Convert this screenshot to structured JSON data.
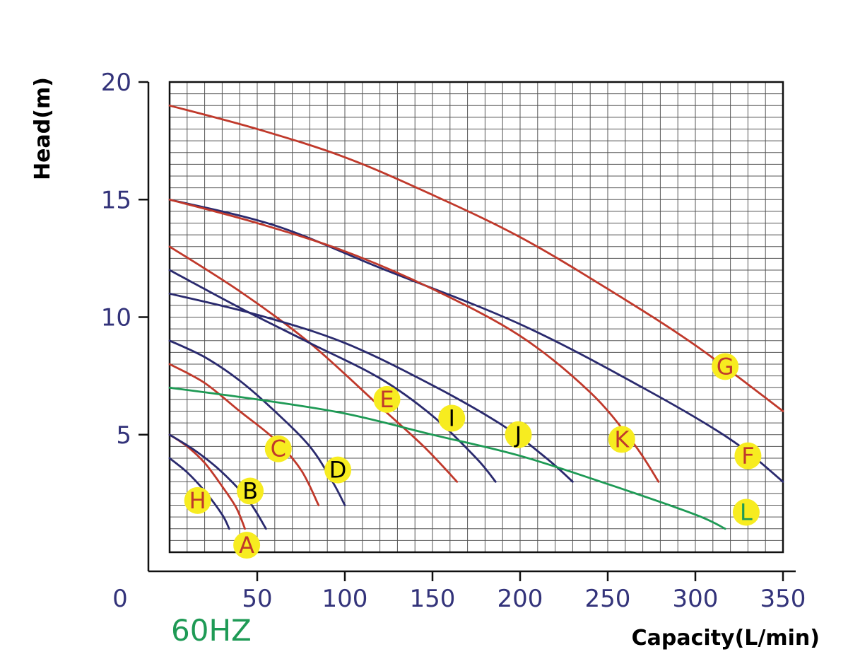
{
  "chart_data": {
    "type": "line",
    "xlabel": "Capacity(L/min)",
    "ylabel": "Head(m)",
    "frequency_label": "60HZ",
    "xlim": [
      0,
      350
    ],
    "ylim": [
      0,
      20
    ],
    "x_ticks": [
      "0",
      "50",
      "100",
      "150",
      "200",
      "250",
      "300",
      "350"
    ],
    "y_ticks": [
      "20",
      "15",
      "10",
      "5"
    ],
    "grid": true,
    "colors": {
      "red": "#c0392b",
      "navy": "#2a2a6e",
      "green": "#1e9a55",
      "marker": "#f7ec20",
      "tick": "#33337a"
    },
    "series": [
      {
        "name": "A",
        "color": "#c0392b",
        "label_color": "#c0392b",
        "label_at": [
          44,
          0.3
        ],
        "points": [
          [
            0,
            5
          ],
          [
            10,
            4.5
          ],
          [
            20,
            3.8
          ],
          [
            30,
            2.8
          ],
          [
            38,
            1.9
          ],
          [
            43,
            1.0
          ]
        ]
      },
      {
        "name": "B",
        "color": "#2a2a6e",
        "label_color": "#000000",
        "label_at": [
          46,
          2.6
        ],
        "points": [
          [
            0,
            5
          ],
          [
            15,
            4.3
          ],
          [
            30,
            3.4
          ],
          [
            45,
            2.2
          ],
          [
            55,
            1.0
          ]
        ]
      },
      {
        "name": "C",
        "color": "#c0392b",
        "label_color": "#c0392b",
        "label_at": [
          62,
          4.4
        ],
        "points": [
          [
            0,
            8
          ],
          [
            20,
            7.2
          ],
          [
            40,
            6.0
          ],
          [
            60,
            4.8
          ],
          [
            75,
            3.5
          ],
          [
            85,
            2.0
          ]
        ]
      },
      {
        "name": "D",
        "color": "#2a2a6e",
        "label_color": "#000000",
        "label_at": [
          96,
          3.5
        ],
        "points": [
          [
            0,
            9
          ],
          [
            20,
            8.3
          ],
          [
            40,
            7.3
          ],
          [
            60,
            6.0
          ],
          [
            80,
            4.5
          ],
          [
            93,
            3.0
          ],
          [
            100,
            2.0
          ]
        ]
      },
      {
        "name": "E",
        "color": "#c0392b",
        "label_color": "#c0392b",
        "label_at": [
          124,
          6.5
        ],
        "points": [
          [
            0,
            13
          ],
          [
            40,
            11.1
          ],
          [
            80,
            8.9
          ],
          [
            120,
            6.2
          ],
          [
            145,
            4.5
          ],
          [
            164,
            3.0
          ]
        ]
      },
      {
        "name": "F",
        "color": "#2a2a6e",
        "label_color": "#c0392b",
        "label_at": [
          330,
          4.1
        ],
        "points": [
          [
            0,
            15
          ],
          [
            60,
            13.9
          ],
          [
            120,
            12.1
          ],
          [
            200,
            9.7
          ],
          [
            270,
            7.0
          ],
          [
            320,
            4.8
          ],
          [
            350,
            3.0
          ]
        ]
      },
      {
        "name": "G",
        "color": "#c0392b",
        "label_color": "#c0392b",
        "label_at": [
          317,
          7.9
        ],
        "points": [
          [
            0,
            19
          ],
          [
            50,
            18
          ],
          [
            100,
            16.8
          ],
          [
            150,
            15.2
          ],
          [
            200,
            13.4
          ],
          [
            250,
            11.2
          ],
          [
            300,
            8.8
          ],
          [
            350,
            6.0
          ]
        ]
      },
      {
        "name": "H",
        "color": "#2a2a6e",
        "label_color": "#c0392b",
        "label_at": [
          16,
          2.2
        ],
        "points": [
          [
            0,
            4
          ],
          [
            10,
            3.4
          ],
          [
            20,
            2.6
          ],
          [
            30,
            1.6
          ],
          [
            34,
            1.0
          ]
        ]
      },
      {
        "name": "I",
        "color": "#2a2a6e",
        "label_color": "#000000",
        "label_at": [
          161,
          5.7
        ],
        "points": [
          [
            0,
            12
          ],
          [
            40,
            10.4
          ],
          [
            80,
            8.9
          ],
          [
            120,
            7.4
          ],
          [
            150,
            5.8
          ],
          [
            175,
            4.0
          ],
          [
            186,
            3.0
          ]
        ]
      },
      {
        "name": "J",
        "color": "#2a2a6e",
        "label_color": "#000000",
        "label_at": [
          199,
          5.0
        ],
        "points": [
          [
            0,
            11
          ],
          [
            50,
            10.1
          ],
          [
            100,
            8.9
          ],
          [
            150,
            7.1
          ],
          [
            190,
            5.4
          ],
          [
            215,
            4.0
          ],
          [
            230,
            3.0
          ]
        ]
      },
      {
        "name": "K",
        "color": "#c0392b",
        "label_color": "#c0392b",
        "label_at": [
          258,
          4.8
        ],
        "points": [
          [
            0,
            15
          ],
          [
            50,
            14.0
          ],
          [
            100,
            12.8
          ],
          [
            150,
            11.2
          ],
          [
            200,
            9.2
          ],
          [
            240,
            6.8
          ],
          [
            265,
            4.6
          ],
          [
            279,
            3.0
          ]
        ]
      },
      {
        "name": "L",
        "color": "#1e9a55",
        "label_color": "#1e9a55",
        "label_at": [
          329,
          1.7
        ],
        "points": [
          [
            0,
            7
          ],
          [
            50,
            6.5
          ],
          [
            100,
            5.9
          ],
          [
            150,
            5.0
          ],
          [
            200,
            4.1
          ],
          [
            250,
            2.9
          ],
          [
            300,
            1.6
          ],
          [
            317,
            1.0
          ]
        ]
      }
    ]
  }
}
